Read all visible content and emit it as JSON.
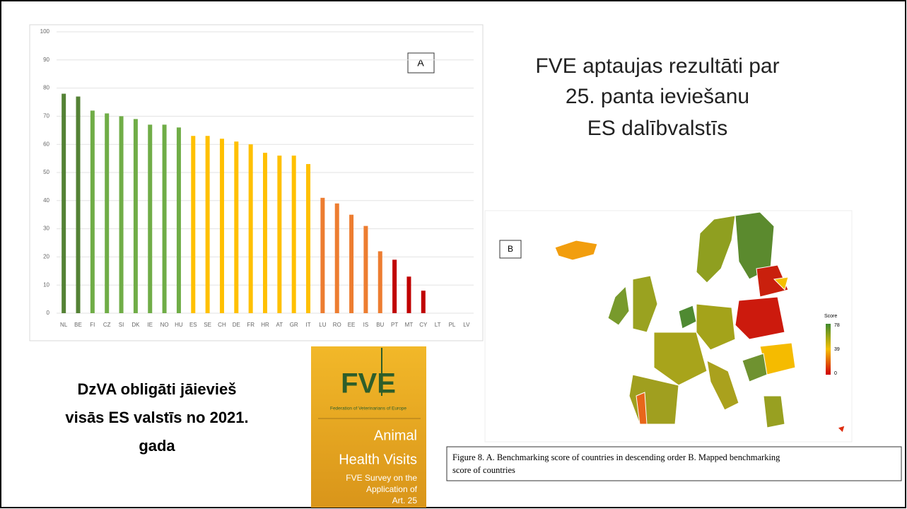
{
  "chart_data": {
    "type": "bar",
    "categories": [
      "NL",
      "BE",
      "FI",
      "CZ",
      "SI",
      "DK",
      "IE",
      "NO",
      "HU",
      "ES",
      "SE",
      "CH",
      "DE",
      "FR",
      "HR",
      "AT",
      "GR",
      "IT",
      "LU",
      "RO",
      "EE",
      "IS",
      "BU",
      "PT",
      "MT",
      "CY",
      "LT",
      "PL",
      "LV"
    ],
    "values": [
      78,
      77,
      72,
      71,
      70,
      69,
      67,
      67,
      66,
      63,
      63,
      62,
      61,
      60,
      57,
      56,
      56,
      53,
      41,
      39,
      35,
      31,
      22,
      19,
      13,
      8,
      0,
      0,
      0
    ],
    "colors": [
      "#548235",
      "#548235",
      "#70ad47",
      "#70ad47",
      "#70ad47",
      "#70ad47",
      "#70ad47",
      "#70ad47",
      "#70ad47",
      "#ffc000",
      "#ffc000",
      "#ffc000",
      "#ffc000",
      "#ffc000",
      "#ffc000",
      "#ffc000",
      "#ffc000",
      "#ffc000",
      "#ed7d31",
      "#ed7d31",
      "#ed7d31",
      "#ed7d31",
      "#ed7d31",
      "#c00000",
      "#c00000",
      "#c00000",
      "#c00000",
      "#c00000",
      "#c00000"
    ],
    "ylim": [
      0,
      100
    ],
    "yticks": [
      0,
      10,
      20,
      30,
      40,
      50,
      60,
      70,
      80,
      90,
      100
    ],
    "grid": true,
    "panel_label": "A"
  },
  "slide": {
    "title": [
      "FVE aptaujas rezultāti par",
      "25. panta ieviešanu",
      "ES dalībvalstīs"
    ],
    "note": [
      "DzVA obligāti jāievieš",
      "visās ES valstīs no 2021.",
      "gada"
    ],
    "caption": [
      "Figure 8. A. Benchmarking score of countries in descending order B. Mapped benchmarking",
      "score of countries"
    ]
  },
  "map": {
    "panel_label": "B",
    "legend_title": "Score",
    "legend_labels": [
      "78",
      "39",
      "0"
    ]
  },
  "cover": {
    "logo": "FVE",
    "org": "Federation of Veterinarians of Europe",
    "title": [
      "Animal",
      "Health Visits"
    ],
    "subtitle": [
      "FVE Survey on the",
      "Application of",
      "Art. 25"
    ]
  }
}
